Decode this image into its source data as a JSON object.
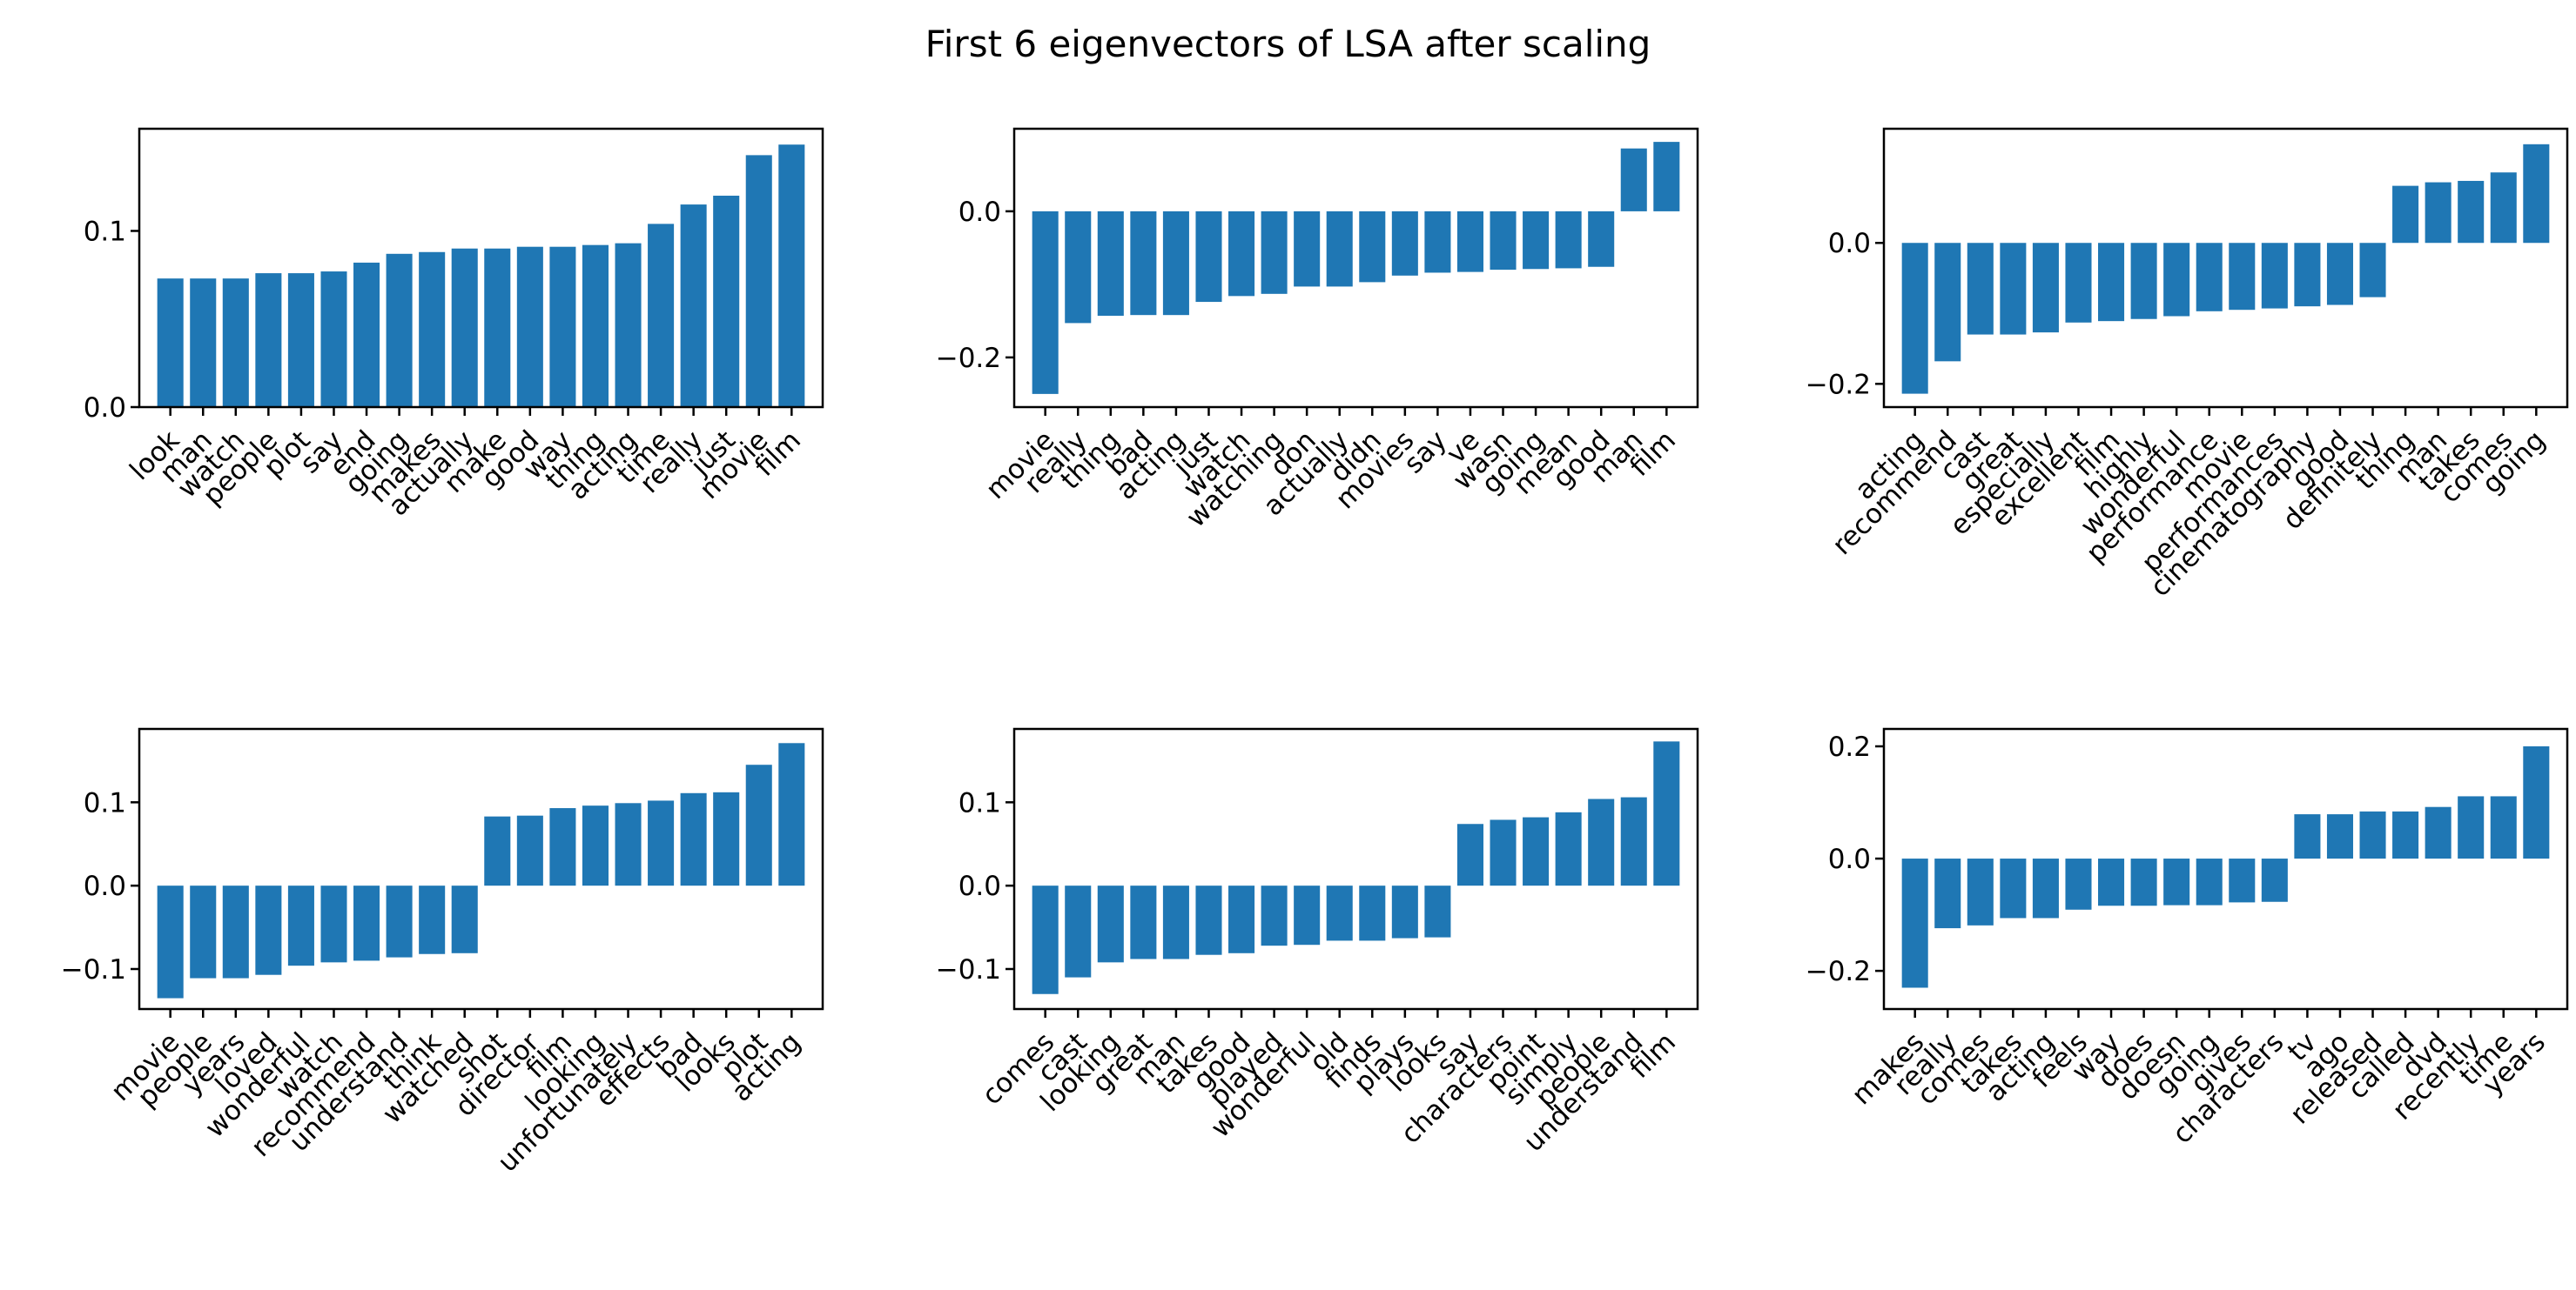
{
  "figure": {
    "title": "First 6 eigenvectors of LSA after scaling",
    "background": "#ffffff",
    "bar_color": "#1f77b4",
    "axis_color": "#000000",
    "text_color": "#000000"
  },
  "chart_data": [
    {
      "type": "bar",
      "name": "eigenvector-1",
      "position": "top-left",
      "title": "",
      "xlabel": "",
      "ylabel": "",
      "grid": false,
      "legend": "none",
      "ylim": [
        0.0,
        0.158
      ],
      "yticks": [
        {
          "value": 0.0,
          "label": "0.0"
        },
        {
          "value": 0.1,
          "label": "0.1"
        }
      ],
      "categories": [
        "look",
        "man",
        "watch",
        "people",
        "plot",
        "say",
        "end",
        "going",
        "makes",
        "actually",
        "make",
        "good",
        "way",
        "thing",
        "acting",
        "time",
        "really",
        "just",
        "movie",
        "film"
      ],
      "values": [
        0.073,
        0.073,
        0.073,
        0.076,
        0.076,
        0.077,
        0.082,
        0.087,
        0.088,
        0.09,
        0.09,
        0.091,
        0.091,
        0.092,
        0.093,
        0.104,
        0.115,
        0.12,
        0.143,
        0.149
      ]
    },
    {
      "type": "bar",
      "name": "eigenvector-2",
      "position": "top-middle",
      "title": "",
      "xlabel": "",
      "ylabel": "",
      "grid": false,
      "legend": "none",
      "ylim": [
        -0.268,
        0.113
      ],
      "yticks": [
        {
          "value": -0.2,
          "label": "−0.2"
        },
        {
          "value": 0.0,
          "label": "0.0"
        }
      ],
      "categories": [
        "movie",
        "really",
        "thing",
        "bad",
        "acting",
        "just",
        "watch",
        "watching",
        "don",
        "actually",
        "didn",
        "movies",
        "say",
        "ve",
        "wasn",
        "going",
        "mean",
        "good",
        "man",
        "film"
      ],
      "values": [
        -0.25,
        -0.153,
        -0.143,
        -0.142,
        -0.142,
        -0.124,
        -0.116,
        -0.113,
        -0.103,
        -0.103,
        -0.097,
        -0.088,
        -0.084,
        -0.083,
        -0.08,
        -0.079,
        -0.078,
        -0.076,
        0.086,
        0.095
      ]
    },
    {
      "type": "bar",
      "name": "eigenvector-3",
      "position": "top-right",
      "title": "",
      "xlabel": "",
      "ylabel": "",
      "grid": false,
      "legend": "none",
      "ylim": [
        -0.233,
        0.162
      ],
      "yticks": [
        {
          "value": -0.2,
          "label": "−0.2"
        },
        {
          "value": 0.0,
          "label": "0.0"
        }
      ],
      "categories": [
        "acting",
        "recommend",
        "cast",
        "great",
        "especially",
        "excellent",
        "film",
        "highly",
        "wonderful",
        "performance",
        "movie",
        "performances",
        "cinematography",
        "good",
        "definitely",
        "thing",
        "man",
        "takes",
        "comes",
        "going"
      ],
      "values": [
        -0.214,
        -0.168,
        -0.13,
        -0.13,
        -0.127,
        -0.113,
        -0.111,
        -0.108,
        -0.104,
        -0.097,
        -0.095,
        -0.093,
        -0.09,
        -0.088,
        -0.077,
        0.081,
        0.086,
        0.088,
        0.1,
        0.14
      ]
    },
    {
      "type": "bar",
      "name": "eigenvector-4",
      "position": "bottom-left",
      "title": "",
      "xlabel": "",
      "ylabel": "",
      "grid": false,
      "legend": "none",
      "ylim": [
        -0.148,
        0.188
      ],
      "yticks": [
        {
          "value": -0.1,
          "label": "−0.1"
        },
        {
          "value": 0.0,
          "label": "0.0"
        },
        {
          "value": 0.1,
          "label": "0.1"
        }
      ],
      "categories": [
        "movie",
        "people",
        "years",
        "loved",
        "wonderful",
        "watch",
        "recommend",
        "understand",
        "think",
        "watched",
        "shot",
        "director",
        "film",
        "looking",
        "unfortunately",
        "effects",
        "bad",
        "looks",
        "plot",
        "acting"
      ],
      "values": [
        -0.135,
        -0.111,
        -0.111,
        -0.107,
        -0.096,
        -0.092,
        -0.09,
        -0.086,
        -0.082,
        -0.081,
        0.083,
        0.084,
        0.093,
        0.096,
        0.099,
        0.102,
        0.111,
        0.112,
        0.145,
        0.171
      ]
    },
    {
      "type": "bar",
      "name": "eigenvector-5",
      "position": "bottom-middle",
      "title": "",
      "xlabel": "",
      "ylabel": "",
      "grid": false,
      "legend": "none",
      "ylim": [
        -0.148,
        0.188
      ],
      "yticks": [
        {
          "value": -0.1,
          "label": "−0.1"
        },
        {
          "value": 0.0,
          "label": "0.0"
        },
        {
          "value": 0.1,
          "label": "0.1"
        }
      ],
      "categories": [
        "comes",
        "cast",
        "looking",
        "great",
        "man",
        "takes",
        "good",
        "played",
        "wonderful",
        "old",
        "finds",
        "plays",
        "looks",
        "say",
        "characters",
        "point",
        "simply",
        "people",
        "understand",
        "film"
      ],
      "values": [
        -0.13,
        -0.11,
        -0.092,
        -0.088,
        -0.088,
        -0.083,
        -0.081,
        -0.072,
        -0.071,
        -0.066,
        -0.066,
        -0.063,
        -0.062,
        0.074,
        0.079,
        0.082,
        0.088,
        0.104,
        0.106,
        0.173
      ]
    },
    {
      "type": "bar",
      "name": "eigenvector-6",
      "position": "bottom-right",
      "title": "",
      "xlabel": "",
      "ylabel": "",
      "grid": false,
      "legend": "none",
      "ylim": [
        -0.268,
        0.231
      ],
      "yticks": [
        {
          "value": -0.2,
          "label": "−0.2"
        },
        {
          "value": 0.0,
          "label": "0.0"
        },
        {
          "value": 0.2,
          "label": "0.2"
        }
      ],
      "categories": [
        "makes",
        "really",
        "comes",
        "takes",
        "acting",
        "feels",
        "way",
        "does",
        "doesn",
        "going",
        "gives",
        "characters",
        "tv",
        "ago",
        "released",
        "called",
        "dvd",
        "recently",
        "time",
        "years"
      ],
      "values": [
        -0.23,
        -0.124,
        -0.119,
        -0.106,
        -0.106,
        -0.091,
        -0.084,
        -0.084,
        -0.083,
        -0.083,
        -0.078,
        -0.077,
        0.079,
        0.079,
        0.084,
        0.084,
        0.092,
        0.111,
        0.111,
        0.2
      ]
    }
  ]
}
